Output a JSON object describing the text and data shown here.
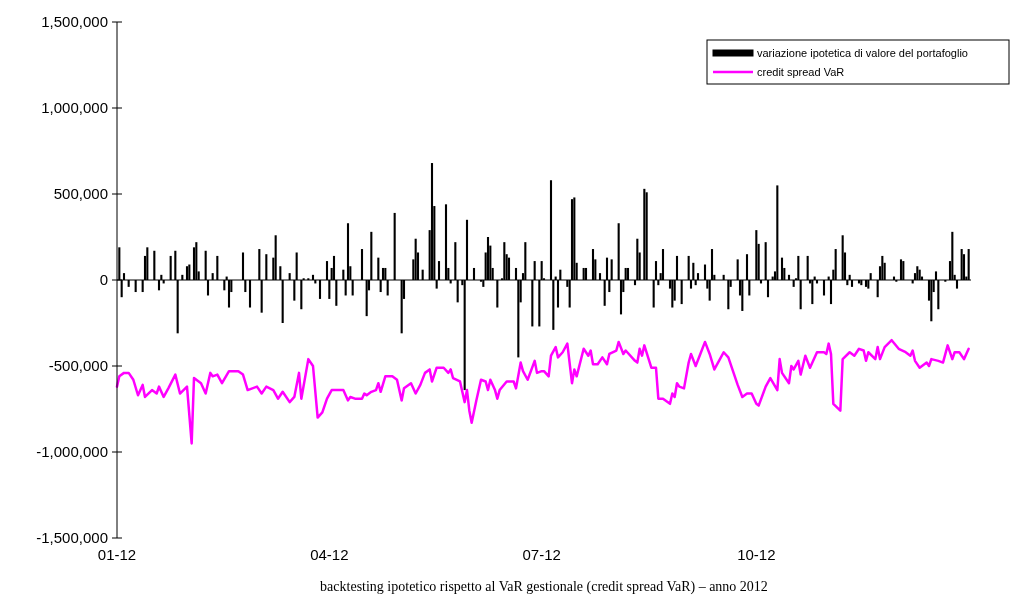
{
  "chart_data": {
    "type": "bar",
    "annotations": [
      "backtesting ipotetico rispetto al VaR gestionale (credit spread VaR) – anno 2012"
    ],
    "xlim": [
      "2012-01-01",
      "2013-01-01"
    ],
    "xticks": [
      {
        "value": "2012-01-01",
        "label": "01-12"
      },
      {
        "value": "2012-04-01",
        "label": "04-12"
      },
      {
        "value": "2012-07-01",
        "label": "07-12"
      },
      {
        "value": "2012-10-01",
        "label": "10-12"
      }
    ],
    "ylim": [
      -1500000,
      1500000
    ],
    "yticks": [
      {
        "value": -1500000,
        "label": "-1,500,000"
      },
      {
        "value": -1000000,
        "label": "-1,000,000"
      },
      {
        "value": -500000,
        "label": "-500,000"
      },
      {
        "value": 0,
        "label": "0"
      },
      {
        "value": 500000,
        "label": "500,000"
      },
      {
        "value": 1000000,
        "label": "1,000,000"
      },
      {
        "value": 1500000,
        "label": "1,500,000"
      }
    ],
    "legend": "top right",
    "series": [
      {
        "name": "variazione ipotetica di valore del portafoglio",
        "color": "#000000",
        "x": [
          "2012-01-02",
          "2012-01-03",
          "2012-01-04",
          "2012-01-06",
          "2012-01-09",
          "2012-01-12",
          "2012-01-13",
          "2012-01-14",
          "2012-01-17",
          "2012-01-19",
          "2012-01-20",
          "2012-01-21",
          "2012-01-24",
          "2012-01-26",
          "2012-01-27",
          "2012-01-29",
          "2012-01-31",
          "2012-02-01",
          "2012-02-03",
          "2012-02-04",
          "2012-02-05",
          "2012-02-08",
          "2012-02-09",
          "2012-02-11",
          "2012-02-13",
          "2012-02-16",
          "2012-02-17",
          "2012-02-18",
          "2012-02-19",
          "2012-02-24",
          "2012-02-25",
          "2012-02-27",
          "2012-03-02",
          "2012-03-03",
          "2012-03-05",
          "2012-03-08",
          "2012-03-09",
          "2012-03-11",
          "2012-03-12",
          "2012-03-15",
          "2012-03-17",
          "2012-03-18",
          "2012-03-20",
          "2012-03-21",
          "2012-03-23",
          "2012-03-25",
          "2012-03-26",
          "2012-03-28",
          "2012-03-31",
          "2012-04-01",
          "2012-04-02",
          "2012-04-03",
          "2012-04-04",
          "2012-04-07",
          "2012-04-08",
          "2012-04-09",
          "2012-04-10",
          "2012-04-11",
          "2012-04-15",
          "2012-04-17",
          "2012-04-18",
          "2012-04-19",
          "2012-04-22",
          "2012-04-23",
          "2012-04-24",
          "2012-04-25",
          "2012-04-26",
          "2012-04-29",
          "2012-05-02",
          "2012-05-03",
          "2012-05-07",
          "2012-05-08",
          "2012-05-09",
          "2012-05-11",
          "2012-05-14",
          "2012-05-15",
          "2012-05-16",
          "2012-05-17",
          "2012-05-18",
          "2012-05-21",
          "2012-05-22",
          "2012-05-23",
          "2012-05-25",
          "2012-05-26",
          "2012-05-28",
          "2012-05-29",
          "2012-05-30",
          "2012-06-02",
          "2012-06-05",
          "2012-06-06",
          "2012-06-07",
          "2012-06-08",
          "2012-06-09",
          "2012-06-10",
          "2012-06-12",
          "2012-06-14",
          "2012-06-15",
          "2012-06-16",
          "2012-06-17",
          "2012-06-20",
          "2012-06-21",
          "2012-06-22",
          "2012-06-23",
          "2012-06-24",
          "2012-06-27",
          "2012-06-28",
          "2012-06-30",
          "2012-07-01",
          "2012-07-02",
          "2012-07-05",
          "2012-07-06",
          "2012-07-07",
          "2012-07-08",
          "2012-07-09",
          "2012-07-12",
          "2012-07-13",
          "2012-07-14",
          "2012-07-15",
          "2012-07-16",
          "2012-07-19",
          "2012-07-20",
          "2012-07-23",
          "2012-07-24",
          "2012-07-26",
          "2012-07-28",
          "2012-07-29",
          "2012-07-30",
          "2012-07-31",
          "2012-08-03",
          "2012-08-04",
          "2012-08-05",
          "2012-08-06",
          "2012-08-07",
          "2012-08-10",
          "2012-08-11",
          "2012-08-12",
          "2012-08-14",
          "2012-08-15",
          "2012-08-18",
          "2012-08-19",
          "2012-08-20",
          "2012-08-21",
          "2012-08-22",
          "2012-08-25",
          "2012-08-26",
          "2012-08-27",
          "2012-08-28",
          "2012-08-30",
          "2012-09-02",
          "2012-09-03",
          "2012-09-04",
          "2012-09-05",
          "2012-09-06",
          "2012-09-09",
          "2012-09-10",
          "2012-09-11",
          "2012-09-12",
          "2012-09-13",
          "2012-09-17",
          "2012-09-19",
          "2012-09-20",
          "2012-09-23",
          "2012-09-24",
          "2012-09-25",
          "2012-09-27",
          "2012-09-28",
          "2012-10-01",
          "2012-10-02",
          "2012-10-03",
          "2012-10-05",
          "2012-10-06",
          "2012-10-08",
          "2012-10-09",
          "2012-10-10",
          "2012-10-12",
          "2012-10-13",
          "2012-10-15",
          "2012-10-17",
          "2012-10-18",
          "2012-10-19",
          "2012-10-20",
          "2012-10-23",
          "2012-10-24",
          "2012-10-25",
          "2012-10-26",
          "2012-10-27",
          "2012-10-30",
          "2012-11-01",
          "2012-11-02",
          "2012-11-03",
          "2012-11-04",
          "2012-11-07",
          "2012-11-08",
          "2012-11-09",
          "2012-11-10",
          "2012-11-11",
          "2012-11-14",
          "2012-11-15",
          "2012-11-17",
          "2012-11-18",
          "2012-11-19",
          "2012-11-22",
          "2012-11-23",
          "2012-11-24",
          "2012-11-25",
          "2012-11-29",
          "2012-11-30",
          "2012-12-02",
          "2012-12-03",
          "2012-12-07",
          "2012-12-08",
          "2012-12-09",
          "2012-12-10",
          "2012-12-11",
          "2012-12-14",
          "2012-12-15",
          "2012-12-16",
          "2012-12-17",
          "2012-12-18",
          "2012-12-21",
          "2012-12-23",
          "2012-12-24",
          "2012-12-25",
          "2012-12-26",
          "2012-12-28",
          "2012-12-29",
          "2012-12-30",
          "2012-12-31"
        ],
        "values": [
          190000,
          -100000,
          40000,
          -40000,
          -70000,
          -70000,
          140000,
          190000,
          170000,
          -60000,
          30000,
          -20000,
          140000,
          170000,
          -310000,
          30000,
          80000,
          90000,
          190000,
          220000,
          50000,
          170000,
          -90000,
          40000,
          140000,
          -60000,
          20000,
          -160000,
          -70000,
          160000,
          -70000,
          -160000,
          180000,
          -190000,
          150000,
          130000,
          260000,
          80000,
          -250000,
          40000,
          -120000,
          160000,
          -170000,
          10000,
          10000,
          30000,
          -20000,
          -110000,
          110000,
          -110000,
          70000,
          140000,
          -150000,
          60000,
          -90000,
          330000,
          80000,
          -90000,
          180000,
          -210000,
          -60000,
          280000,
          130000,
          -70000,
          70000,
          70000,
          -90000,
          390000,
          -310000,
          -110000,
          120000,
          240000,
          160000,
          60000,
          290000,
          680000,
          430000,
          -50000,
          110000,
          440000,
          70000,
          -20000,
          220000,
          -130000,
          -30000,
          -640000,
          350000,
          70000,
          -10000,
          -40000,
          160000,
          250000,
          200000,
          70000,
          -160000,
          10000,
          220000,
          150000,
          130000,
          70000,
          -450000,
          -130000,
          40000,
          220000,
          -270000,
          110000,
          -270000,
          110000,
          10000,
          580000,
          -290000,
          20000,
          -160000,
          60000,
          -40000,
          -160000,
          470000,
          480000,
          100000,
          70000,
          70000,
          180000,
          120000,
          40000,
          -150000,
          130000,
          -70000,
          120000,
          330000,
          -200000,
          -70000,
          70000,
          70000,
          -30000,
          240000,
          160000,
          530000,
          510000,
          -160000,
          110000,
          -30000,
          40000,
          180000,
          -50000,
          -160000,
          -120000,
          140000,
          -140000,
          140000,
          -50000,
          100000,
          -30000,
          40000,
          90000,
          -50000,
          -120000,
          180000,
          30000,
          30000,
          -170000,
          -40000,
          120000,
          -90000,
          -180000,
          150000,
          -90000,
          290000,
          210000,
          -20000,
          220000,
          -100000,
          20000,
          50000,
          550000,
          130000,
          70000,
          30000,
          -40000,
          10000,
          140000,
          -170000,
          140000,
          -20000,
          -140000,
          20000,
          -20000,
          -90000,
          20000,
          -140000,
          60000,
          180000,
          260000,
          160000,
          -30000,
          30000,
          -40000,
          -20000,
          -30000,
          -40000,
          -50000,
          40000,
          -100000,
          80000,
          140000,
          100000,
          20000,
          -10000,
          120000,
          110000,
          -20000,
          40000,
          80000,
          60000,
          20000,
          -120000,
          -240000,
          -70000,
          50000,
          -170000,
          -10000,
          110000,
          280000,
          30000,
          -50000,
          180000,
          150000,
          20000,
          180000
        ]
      },
      {
        "name": "credit spread VaR",
        "type": "line",
        "color": "#ff00ff",
        "x": [
          "2012-01-01",
          "2012-01-02",
          "2012-01-04",
          "2012-01-06",
          "2012-01-08",
          "2012-01-10",
          "2012-01-12",
          "2012-01-13",
          "2012-01-16",
          "2012-01-18",
          "2012-01-19",
          "2012-01-21",
          "2012-01-23",
          "2012-01-26",
          "2012-01-28",
          "2012-01-31",
          "2012-02-02",
          "2012-02-03",
          "2012-02-06",
          "2012-02-08",
          "2012-02-10",
          "2012-02-11",
          "2012-02-13",
          "2012-02-15",
          "2012-02-18",
          "2012-02-22",
          "2012-02-24",
          "2012-02-26",
          "2012-03-01",
          "2012-03-03",
          "2012-03-05",
          "2012-03-08",
          "2012-03-10",
          "2012-03-12",
          "2012-03-15",
          "2012-03-17",
          "2012-03-19",
          "2012-03-20",
          "2012-03-23",
          "2012-03-25",
          "2012-03-27",
          "2012-03-29",
          "2012-03-31",
          "2012-04-02",
          "2012-04-05",
          "2012-04-07",
          "2012-04-09",
          "2012-04-10",
          "2012-04-12",
          "2012-04-15",
          "2012-04-16",
          "2012-04-17",
          "2012-04-19",
          "2012-04-21",
          "2012-04-22",
          "2012-04-23",
          "2012-04-25",
          "2012-04-28",
          "2012-04-30",
          "2012-05-02",
          "2012-05-03",
          "2012-05-06",
          "2012-05-08",
          "2012-05-10",
          "2012-05-12",
          "2012-05-14",
          "2012-05-15",
          "2012-05-17",
          "2012-05-20",
          "2012-05-22",
          "2012-05-23",
          "2012-05-24",
          "2012-05-27",
          "2012-05-29",
          "2012-05-30",
          "2012-05-31",
          "2012-06-01",
          "2012-06-03",
          "2012-06-05",
          "2012-06-07",
          "2012-06-08",
          "2012-06-09",
          "2012-06-11",
          "2012-06-12",
          "2012-06-13",
          "2012-06-16",
          "2012-06-19",
          "2012-06-20",
          "2012-06-22",
          "2012-06-23",
          "2012-06-25",
          "2012-06-28",
          "2012-06-29",
          "2012-07-01",
          "2012-07-02",
          "2012-07-04",
          "2012-07-05",
          "2012-07-07",
          "2012-07-08",
          "2012-07-10",
          "2012-07-12",
          "2012-07-14",
          "2012-07-15",
          "2012-07-16",
          "2012-07-19",
          "2012-07-21",
          "2012-07-22",
          "2012-07-23",
          "2012-07-25",
          "2012-07-27",
          "2012-07-29",
          "2012-07-30",
          "2012-08-02",
          "2012-08-03",
          "2012-08-05",
          "2012-08-06",
          "2012-08-10",
          "2012-08-11",
          "2012-08-12",
          "2012-08-13",
          "2012-08-14",
          "2012-08-17",
          "2012-08-19",
          "2012-08-20",
          "2012-08-22",
          "2012-08-25",
          "2012-08-26",
          "2012-08-27",
          "2012-08-28",
          "2012-08-29",
          "2012-08-31",
          "2012-09-02",
          "2012-09-03",
          "2012-09-05",
          "2012-09-07",
          "2012-09-09",
          "2012-09-11",
          "2012-09-13",
          "2012-09-15",
          "2012-09-17",
          "2012-09-19",
          "2012-09-21",
          "2012-09-23",
          "2012-09-25",
          "2012-09-27",
          "2012-09-29",
          "2012-10-01",
          "2012-10-02",
          "2012-10-05",
          "2012-10-07",
          "2012-10-10",
          "2012-10-11",
          "2012-10-12",
          "2012-10-15",
          "2012-10-16",
          "2012-10-17",
          "2012-10-19",
          "2012-10-20",
          "2012-10-22",
          "2012-10-24",
          "2012-10-27",
          "2012-10-30",
          "2012-10-31",
          "2012-11-01",
          "2012-11-02",
          "2012-11-03",
          "2012-11-06",
          "2012-11-07",
          "2012-11-10",
          "2012-11-12",
          "2012-11-14",
          "2012-11-16",
          "2012-11-17",
          "2012-11-18",
          "2012-11-21",
          "2012-11-22",
          "2012-11-23",
          "2012-11-25",
          "2012-11-28",
          "2012-12-01",
          "2012-12-04",
          "2012-12-06",
          "2012-12-07",
          "2012-12-08",
          "2012-12-10",
          "2012-12-13",
          "2012-12-14",
          "2012-12-15",
          "2012-12-18",
          "2012-12-20",
          "2012-12-22",
          "2012-12-24",
          "2012-12-25",
          "2012-12-27",
          "2012-12-29",
          "2012-12-31"
        ],
        "values": [
          -620000,
          -560000,
          -540000,
          -540000,
          -580000,
          -670000,
          -610000,
          -680000,
          -640000,
          -660000,
          -620000,
          -680000,
          -630000,
          -550000,
          -660000,
          -620000,
          -950000,
          -570000,
          -600000,
          -660000,
          -540000,
          -560000,
          -550000,
          -600000,
          -530000,
          -530000,
          -550000,
          -640000,
          -620000,
          -660000,
          -620000,
          -640000,
          -690000,
          -650000,
          -710000,
          -680000,
          -540000,
          -690000,
          -460000,
          -500000,
          -800000,
          -770000,
          -690000,
          -640000,
          -640000,
          -640000,
          -700000,
          -680000,
          -690000,
          -690000,
          -660000,
          -670000,
          -650000,
          -640000,
          -600000,
          -650000,
          -560000,
          -560000,
          -580000,
          -700000,
          -630000,
          -600000,
          -660000,
          -610000,
          -540000,
          -520000,
          -590000,
          -510000,
          -510000,
          -540000,
          -520000,
          -570000,
          -590000,
          -710000,
          -640000,
          -760000,
          -830000,
          -700000,
          -580000,
          -590000,
          -640000,
          -580000,
          -640000,
          -690000,
          -640000,
          -590000,
          -590000,
          -630000,
          -480000,
          -530000,
          -580000,
          -470000,
          -540000,
          -530000,
          -530000,
          -560000,
          -440000,
          -390000,
          -450000,
          -420000,
          -370000,
          -600000,
          -520000,
          -560000,
          -400000,
          -440000,
          -410000,
          -490000,
          -490000,
          -450000,
          -490000,
          -430000,
          -410000,
          -360000,
          -430000,
          -410000,
          -470000,
          -480000,
          -400000,
          -440000,
          -380000,
          -510000,
          -510000,
          -690000,
          -690000,
          -720000,
          -660000,
          -680000,
          -600000,
          -620000,
          -630000,
          -480000,
          -430000,
          -500000,
          -430000,
          -360000,
          -430000,
          -520000,
          -470000,
          -420000,
          -450000,
          -530000,
          -610000,
          -680000,
          -660000,
          -660000,
          -720000,
          -730000,
          -620000,
          -570000,
          -640000,
          -460000,
          -540000,
          -600000,
          -500000,
          -520000,
          -470000,
          -550000,
          -440000,
          -510000,
          -420000,
          -420000,
          -430000,
          -370000,
          -430000,
          -720000,
          -760000,
          -460000,
          -420000,
          -440000,
          -400000,
          -410000,
          -470000,
          -420000,
          -460000,
          -390000,
          -460000,
          -390000,
          -350000,
          -400000,
          -420000,
          -440000,
          -410000,
          -470000,
          -510000,
          -480000,
          -500000,
          -460000,
          -470000,
          -480000,
          -380000,
          -460000,
          -420000,
          -420000,
          -460000,
          -400000
        ]
      }
    ]
  }
}
